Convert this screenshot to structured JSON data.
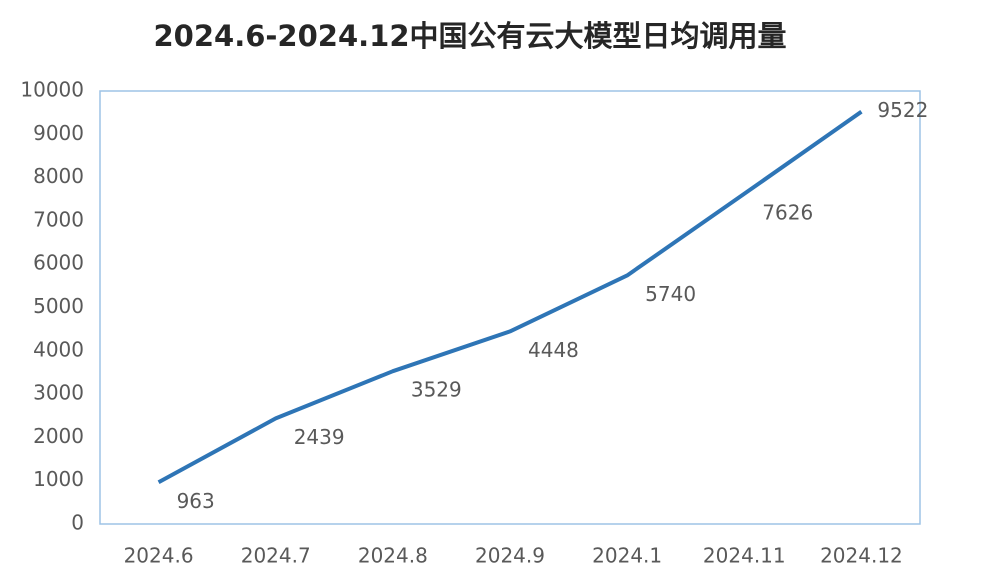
{
  "chart_data": {
    "type": "line",
    "title": "2024.6-2024.12中国公有云大模型日均调用量",
    "categories": [
      "2024.6",
      "2024.7",
      "2024.8",
      "2024.9",
      "2024.1",
      "2024.11",
      "2024.12"
    ],
    "values": [
      963,
      2439,
      3529,
      4448,
      5740,
      7626,
      9522
    ],
    "color": "#2e75b6",
    "ylim": [
      0,
      10000
    ],
    "yticks": [
      0,
      1000,
      2000,
      3000,
      4000,
      5000,
      6000,
      7000,
      8000,
      9000,
      10000
    ],
    "grid": false,
    "data_labels": true
  }
}
